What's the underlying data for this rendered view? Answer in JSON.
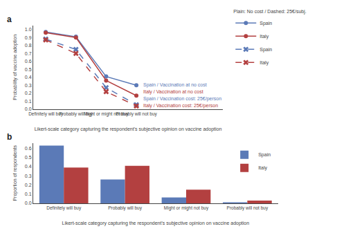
{
  "chart_data": [
    {
      "type": "line",
      "panel_label": "a",
      "categories": [
        "Definitely will buy",
        "Probably will buy",
        "Might or might not buy",
        "Probably will not buy"
      ],
      "xlabel": "Likert-scale category capturing the respondent's subjective opinion on vaccine adoption",
      "ylabel": "Probability of vaccine adoption",
      "ylim": [
        0.0,
        1.05
      ],
      "yticks": [
        {
          "value": 0,
          "label": "0.0"
        },
        0.1,
        0.2,
        0.3,
        0.4,
        0.5,
        0.6,
        0.7,
        0.8,
        0.9,
        {
          "value": 1,
          "label": "1.0"
        }
      ],
      "grid": false,
      "legend": "right",
      "legend_title": "Plain: No cost / Dashed: 25€/subj.",
      "series": [
        {
          "name": "Spain",
          "color": "#5b7ab7",
          "marker": "circle",
          "line_style": "solid",
          "values": [
            0.97,
            0.91,
            0.41,
            0.3
          ]
        },
        {
          "name": "Italy",
          "color": "#b34040",
          "marker": "circle",
          "line_style": "solid",
          "values": [
            0.96,
            0.9,
            0.36,
            0.17
          ]
        },
        {
          "name": "Spain",
          "color": "#5b7ab7",
          "marker": "x",
          "line_style": "dashed",
          "values": [
            0.88,
            0.75,
            0.27,
            0.055
          ]
        },
        {
          "name": "Italy",
          "color": "#b34040",
          "marker": "x",
          "line_style": "dashed",
          "values": [
            0.87,
            0.7,
            0.22,
            0.04
          ]
        }
      ],
      "annotations": [
        {
          "text": "Spain / Vaccination at no cost",
          "x": "Probably will not buy",
          "y": 0.3,
          "color": "#5b7ab7"
        },
        {
          "text": "Italy / Vaccination at no cost",
          "x": "Probably will not buy",
          "y": 0.17,
          "color": "#b34040"
        },
        {
          "text": "Italy / Vaccination cost: 25€/person",
          "x": "Probably will not buy",
          "y": 0.04,
          "color": "#b34040"
        },
        {
          "text": "Spain / Vaccination cost: 25€/person",
          "x": "Probably will not buy",
          "y": 0.055,
          "color": "#5b7ab7"
        }
      ]
    },
    {
      "type": "bar",
      "panel_label": "b",
      "categories": [
        "Definitely will buy",
        "Probably will buy",
        "Might or might not buy",
        "Probably will not buy"
      ],
      "xlabel": "Likert-scale category capturing the respondent's subjective opinion on vaccine adoption",
      "ylabel": "Proportion of respondents",
      "ylim": [
        0.0,
        0.66
      ],
      "yticks": [
        {
          "value": 0,
          "label": "0.0"
        },
        0.1,
        0.2,
        0.3,
        0.4,
        0.5,
        0.6
      ],
      "grid": false,
      "legend": "upper right",
      "series": [
        {
          "name": "Spain",
          "color": "#5b7ab7",
          "values": [
            0.63,
            0.26,
            0.065,
            0.012
          ]
        },
        {
          "name": "Italy",
          "color": "#b34040",
          "values": [
            0.39,
            0.41,
            0.15,
            0.03
          ]
        }
      ]
    }
  ]
}
